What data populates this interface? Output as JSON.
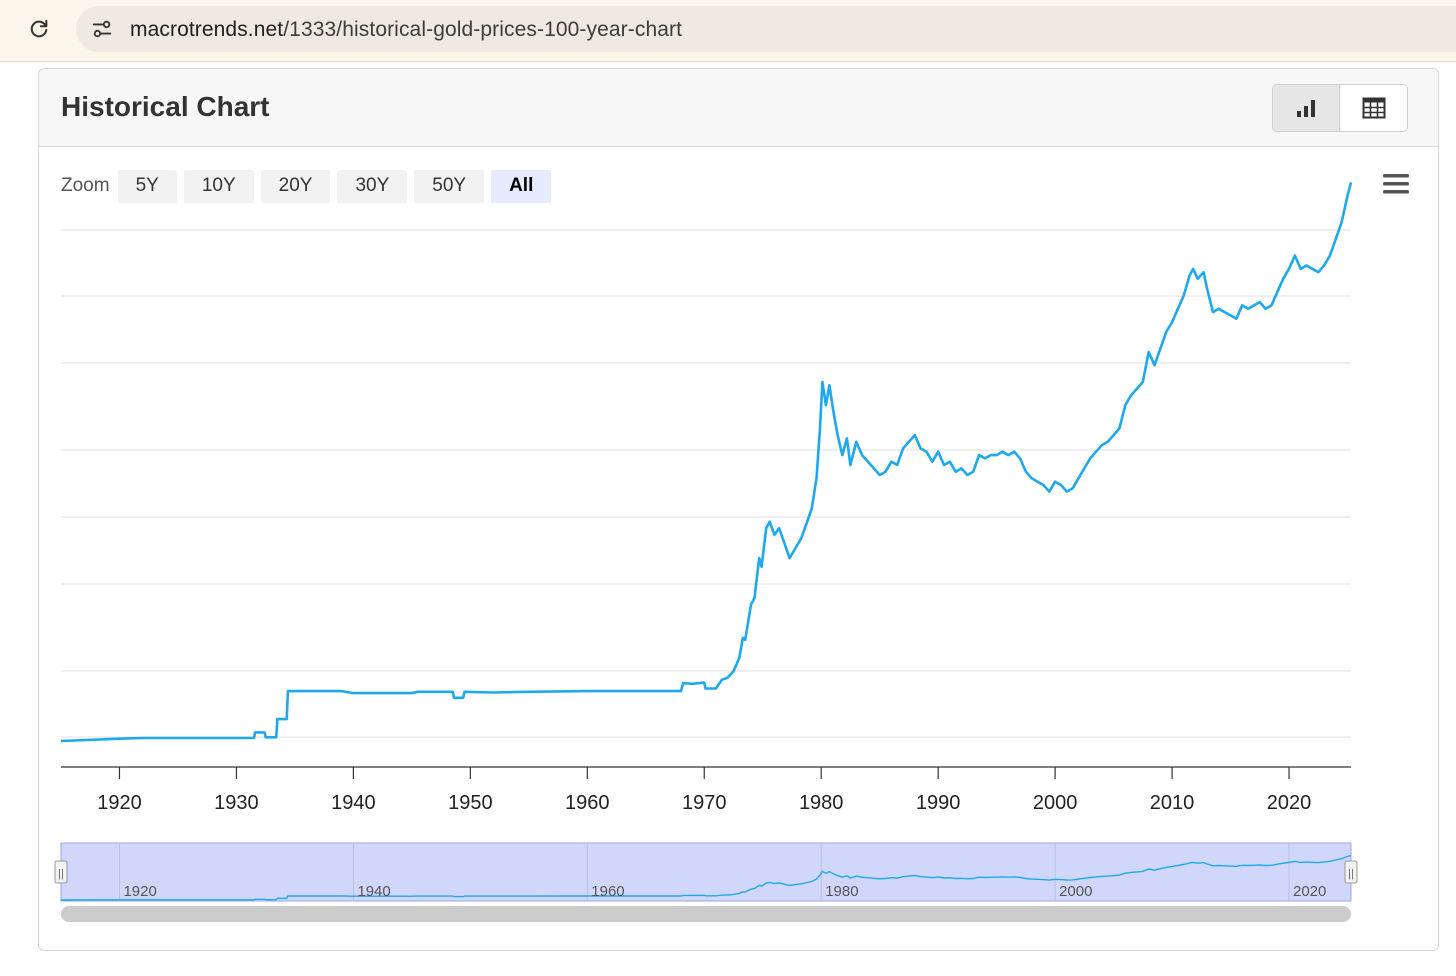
{
  "browser": {
    "url_host": "macrotrends.net",
    "url_path": "/1333/historical-gold-prices-100-year-chart",
    "reload_icon": "reload-icon",
    "site_icon": "site-settings-icon"
  },
  "card": {
    "title": "Historical Chart",
    "view_toggle": [
      {
        "name": "chart-view-button",
        "icon": "bar-chart-icon",
        "active": true
      },
      {
        "name": "table-view-button",
        "icon": "table-icon",
        "active": false
      }
    ]
  },
  "zoom": {
    "label": "Zoom",
    "buttons": [
      "5Y",
      "10Y",
      "20Y",
      "30Y",
      "50Y",
      "All"
    ],
    "selected": "All"
  },
  "menu_icon": "hamburger-menu-icon",
  "chart_data": {
    "type": "line",
    "title": "",
    "xlabel": "",
    "ylabel": "",
    "y_tick_labels_visible": false,
    "grid": true,
    "line_color": "#1fa8ee",
    "xlim": [
      1915,
      2025.3
    ],
    "x_ticks": [
      1920,
      1930,
      1940,
      1950,
      1960,
      1970,
      1980,
      1990,
      2000,
      2010,
      2020
    ],
    "relative_level_note_free": true,
    "series": [
      {
        "values_relative": [
          [
            1915.0,
            0.0
          ],
          [
            1920.0,
            0.035
          ],
          [
            1922.0,
            0.045
          ],
          [
            1925.0,
            0.045
          ],
          [
            1931.5,
            0.045
          ],
          [
            1931.6,
            0.13
          ],
          [
            1932.4,
            0.13
          ],
          [
            1932.5,
            0.055
          ],
          [
            1933.4,
            0.055
          ],
          [
            1933.5,
            0.33
          ],
          [
            1934.3,
            0.33
          ],
          [
            1934.4,
            0.75
          ],
          [
            1939.0,
            0.75
          ],
          [
            1940.0,
            0.72
          ],
          [
            1945.0,
            0.72
          ],
          [
            1945.5,
            0.74
          ],
          [
            1948.5,
            0.74
          ],
          [
            1948.6,
            0.65
          ],
          [
            1949.4,
            0.65
          ],
          [
            1949.5,
            0.74
          ],
          [
            1952.0,
            0.73
          ],
          [
            1955.0,
            0.74
          ],
          [
            1960.0,
            0.75
          ],
          [
            1964.0,
            0.75
          ],
          [
            1968.0,
            0.75
          ],
          [
            1968.2,
            0.87
          ],
          [
            1969.0,
            0.86
          ],
          [
            1970.0,
            0.88
          ],
          [
            1970.1,
            0.79
          ],
          [
            1971.0,
            0.79
          ],
          [
            1971.5,
            0.92
          ],
          [
            1972.0,
            0.95
          ],
          [
            1972.5,
            1.05
          ],
          [
            1973.0,
            1.25
          ],
          [
            1973.3,
            1.55
          ],
          [
            1973.5,
            1.52
          ],
          [
            1974.0,
            2.05
          ],
          [
            1974.3,
            2.15
          ],
          [
            1974.7,
            2.75
          ],
          [
            1974.9,
            2.62
          ],
          [
            1975.3,
            3.2
          ],
          [
            1975.6,
            3.3
          ],
          [
            1976.0,
            3.1
          ],
          [
            1976.4,
            3.2
          ],
          [
            1976.8,
            3.0
          ],
          [
            1977.3,
            2.75
          ],
          [
            1977.8,
            2.9
          ],
          [
            1978.3,
            3.05
          ],
          [
            1978.8,
            3.3
          ],
          [
            1979.2,
            3.5
          ],
          [
            1979.6,
            3.95
          ],
          [
            1979.9,
            4.7
          ],
          [
            1980.1,
            5.4
          ],
          [
            1980.4,
            5.05
          ],
          [
            1980.7,
            5.35
          ],
          [
            1981.0,
            5.0
          ],
          [
            1981.4,
            4.6
          ],
          [
            1981.8,
            4.3
          ],
          [
            1982.2,
            4.55
          ],
          [
            1982.5,
            4.15
          ],
          [
            1983.0,
            4.5
          ],
          [
            1983.5,
            4.3
          ],
          [
            1984.0,
            4.2
          ],
          [
            1984.5,
            4.1
          ],
          [
            1985.0,
            4.0
          ],
          [
            1985.5,
            4.05
          ],
          [
            1986.0,
            4.2
          ],
          [
            1986.5,
            4.15
          ],
          [
            1987.0,
            4.4
          ],
          [
            1987.5,
            4.5
          ],
          [
            1988.0,
            4.6
          ],
          [
            1988.5,
            4.4
          ],
          [
            1989.0,
            4.35
          ],
          [
            1989.5,
            4.2
          ],
          [
            1990.0,
            4.35
          ],
          [
            1990.5,
            4.15
          ],
          [
            1991.0,
            4.2
          ],
          [
            1991.5,
            4.05
          ],
          [
            1992.0,
            4.1
          ],
          [
            1992.5,
            4.0
          ],
          [
            1993.0,
            4.05
          ],
          [
            1993.5,
            4.3
          ],
          [
            1994.0,
            4.25
          ],
          [
            1994.5,
            4.3
          ],
          [
            1995.0,
            4.3
          ],
          [
            1995.5,
            4.35
          ],
          [
            1996.0,
            4.3
          ],
          [
            1996.5,
            4.35
          ],
          [
            1997.0,
            4.25
          ],
          [
            1997.5,
            4.05
          ],
          [
            1998.0,
            3.95
          ],
          [
            1998.5,
            3.9
          ],
          [
            1999.0,
            3.85
          ],
          [
            1999.5,
            3.75
          ],
          [
            2000.0,
            3.9
          ],
          [
            2000.5,
            3.85
          ],
          [
            2001.0,
            3.75
          ],
          [
            2001.5,
            3.8
          ],
          [
            2002.0,
            3.95
          ],
          [
            2002.5,
            4.1
          ],
          [
            2003.0,
            4.25
          ],
          [
            2003.5,
            4.35
          ],
          [
            2004.0,
            4.45
          ],
          [
            2004.5,
            4.5
          ],
          [
            2005.0,
            4.6
          ],
          [
            2005.5,
            4.7
          ],
          [
            2006.0,
            5.05
          ],
          [
            2006.5,
            5.2
          ],
          [
            2007.0,
            5.3
          ],
          [
            2007.5,
            5.4
          ],
          [
            2008.0,
            5.85
          ],
          [
            2008.5,
            5.65
          ],
          [
            2009.0,
            5.9
          ],
          [
            2009.5,
            6.15
          ],
          [
            2010.0,
            6.3
          ],
          [
            2010.5,
            6.5
          ],
          [
            2011.0,
            6.7
          ],
          [
            2011.5,
            7.0
          ],
          [
            2011.8,
            7.1
          ],
          [
            2012.2,
            6.95
          ],
          [
            2012.7,
            7.05
          ],
          [
            2013.0,
            6.8
          ],
          [
            2013.5,
            6.45
          ],
          [
            2014.0,
            6.5
          ],
          [
            2014.5,
            6.45
          ],
          [
            2015.0,
            6.4
          ],
          [
            2015.5,
            6.35
          ],
          [
            2016.0,
            6.55
          ],
          [
            2016.5,
            6.5
          ],
          [
            2017.0,
            6.55
          ],
          [
            2017.5,
            6.6
          ],
          [
            2018.0,
            6.5
          ],
          [
            2018.5,
            6.55
          ],
          [
            2019.0,
            6.75
          ],
          [
            2019.5,
            6.95
          ],
          [
            2020.0,
            7.1
          ],
          [
            2020.5,
            7.3
          ],
          [
            2021.0,
            7.1
          ],
          [
            2021.5,
            7.15
          ],
          [
            2022.0,
            7.1
          ],
          [
            2022.5,
            7.05
          ],
          [
            2023.0,
            7.15
          ],
          [
            2023.5,
            7.3
          ],
          [
            2024.0,
            7.55
          ],
          [
            2024.5,
            7.8
          ],
          [
            2025.0,
            8.2
          ],
          [
            2025.3,
            8.4
          ]
        ]
      }
    ]
  },
  "navigator": {
    "labels": [
      "1920",
      "1940",
      "1960",
      "1980",
      "2000",
      "2020"
    ],
    "handle_glyph": "||"
  }
}
